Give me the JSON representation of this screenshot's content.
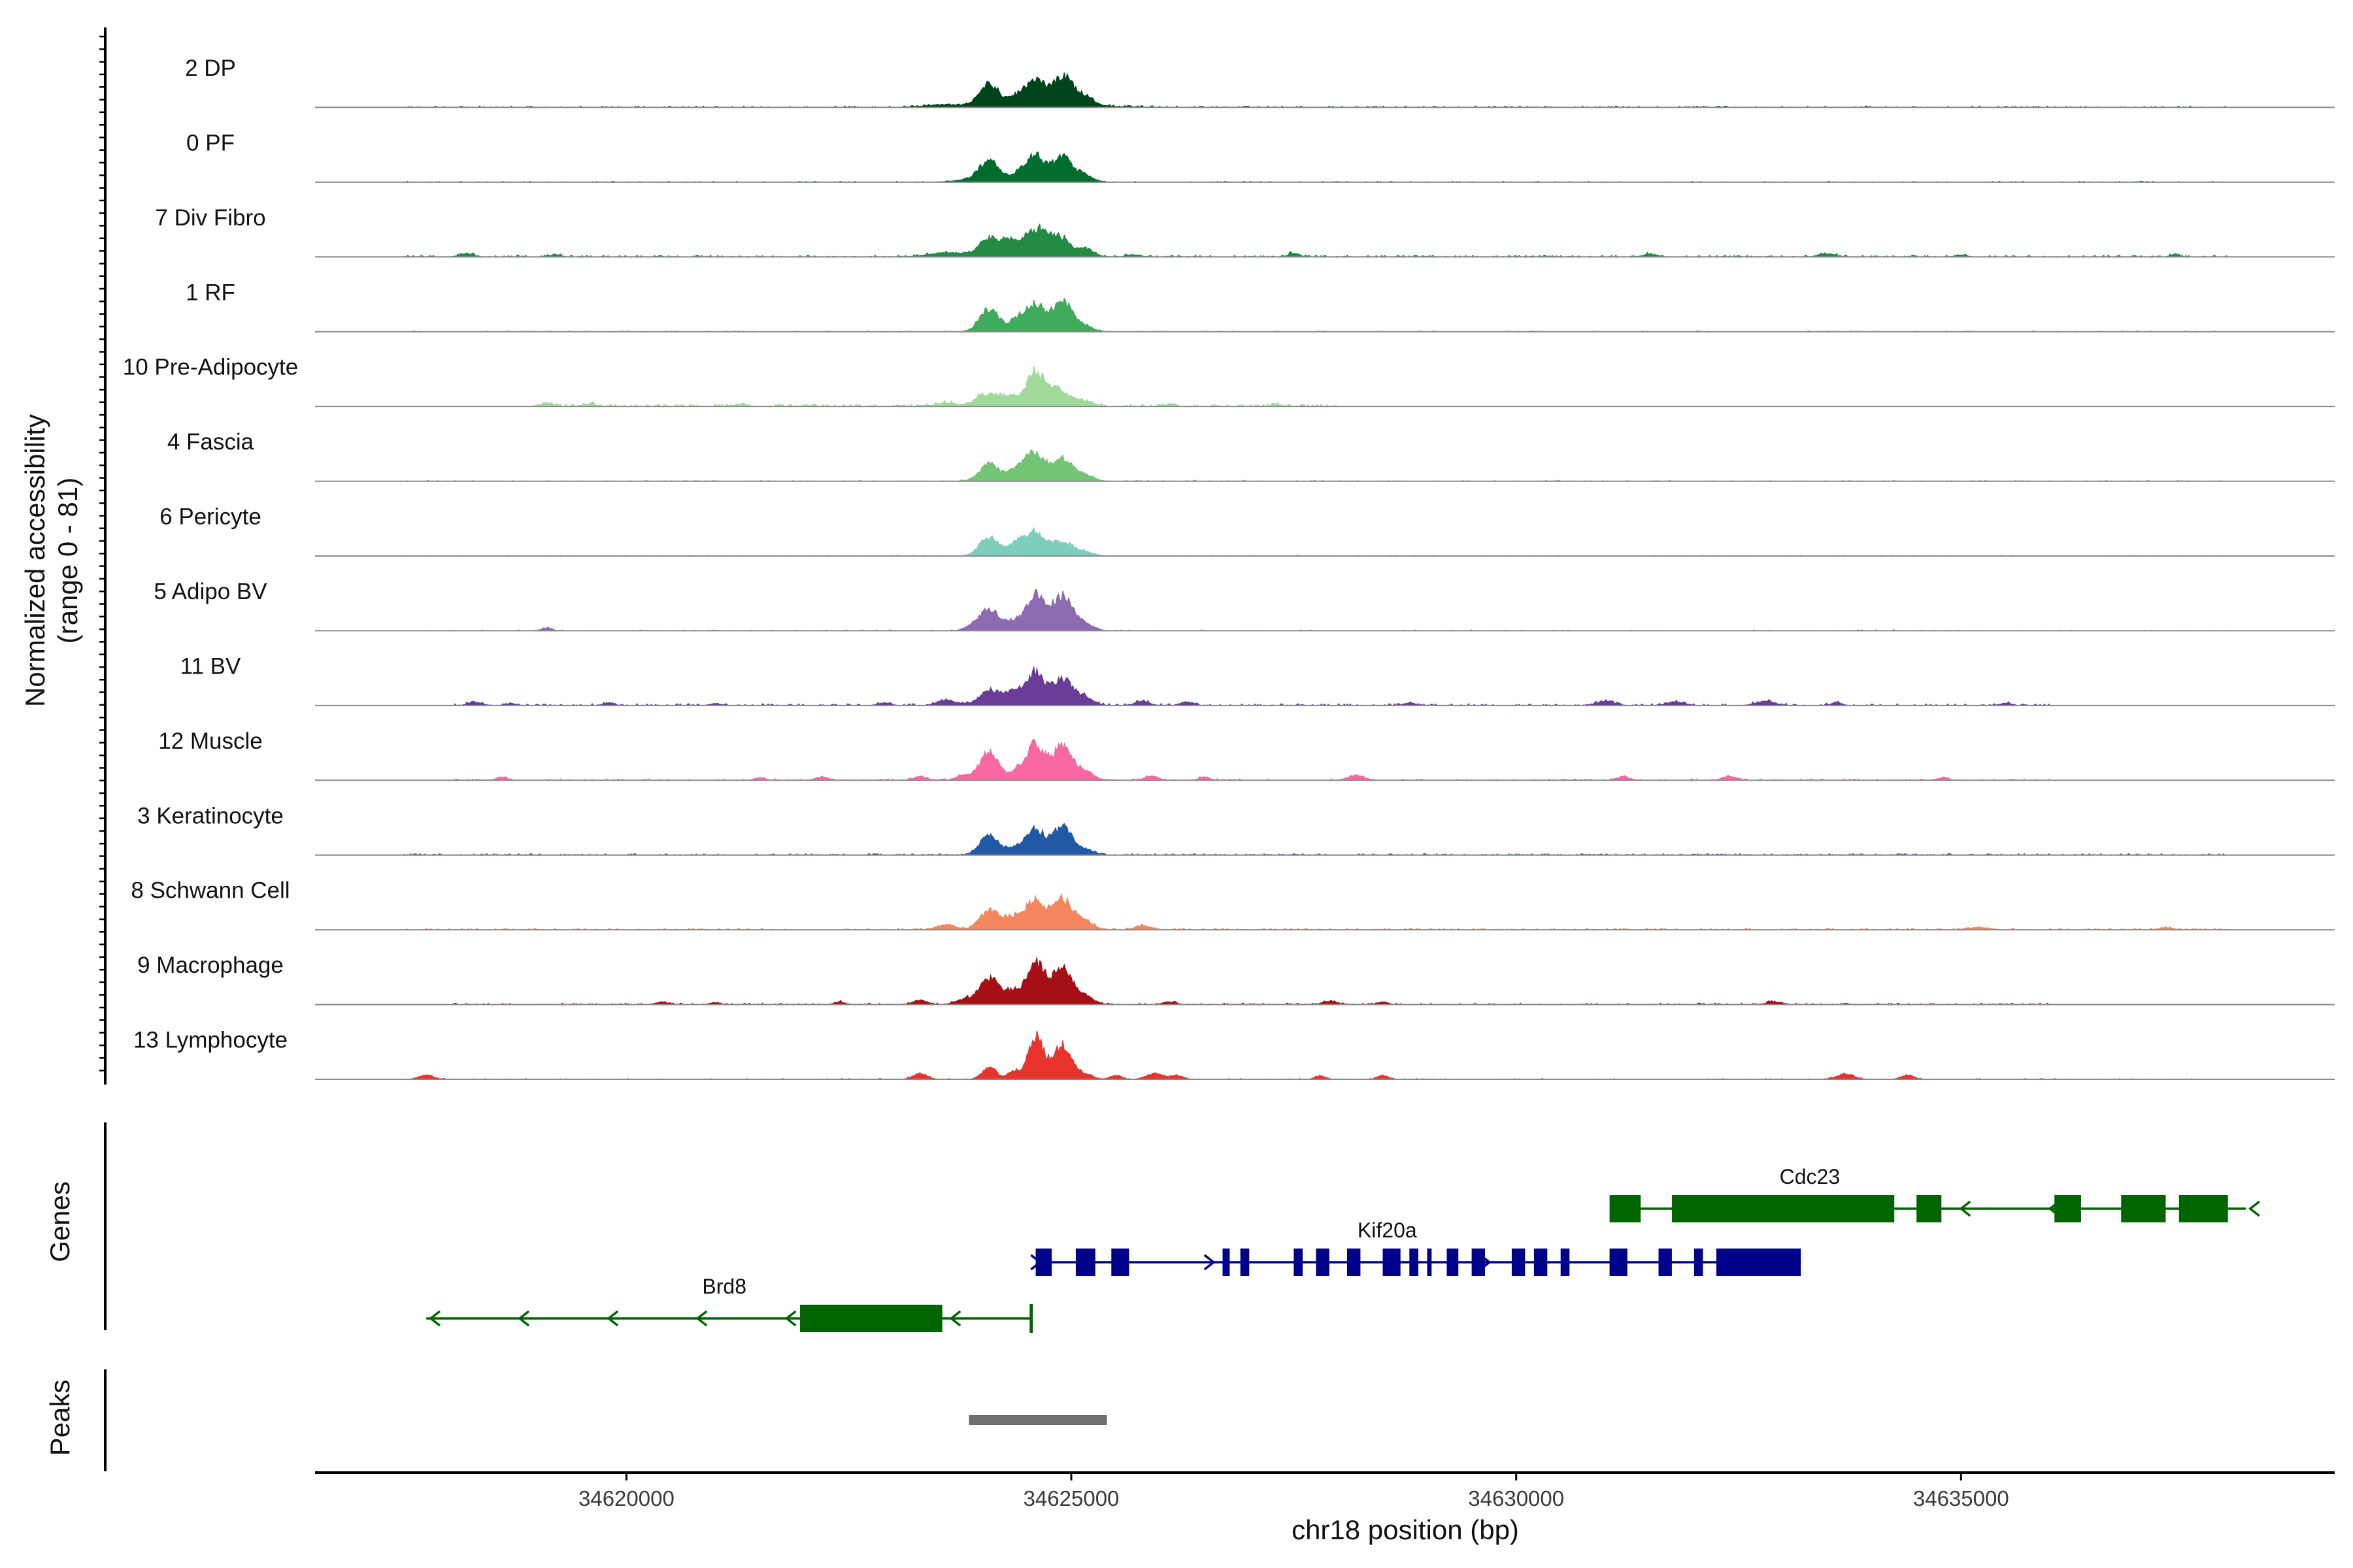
{
  "chart_data": {
    "type": "area",
    "title": "",
    "ylabel": [
      "Normalized accessibility",
      "(range 0 - 81)"
    ],
    "ylim": [
      0,
      81
    ],
    "xlabel": "chr18 position (bp)",
    "xlim": [
      34616500,
      34639200
    ],
    "xticks": [
      34620000,
      34625000,
      34630000,
      34635000
    ],
    "xtick_labels": [
      "34620000",
      "34625000",
      "34630000",
      "34635000"
    ],
    "tracks": [
      {
        "name": "2 DP",
        "color": "#00441b",
        "peaks": [
          [
            34624080,
            52,
            110
          ],
          [
            34624400,
            22,
            90
          ],
          [
            34624600,
            58,
            105
          ],
          [
            34624900,
            70,
            110
          ],
          [
            34625150,
            22,
            100
          ],
          [
            34623600,
            6,
            250
          ],
          [
            34624900,
            4,
            600
          ]
        ],
        "noise": {
          "amp": 3,
          "density": 0.35,
          "range": [
            34617500,
            34638000
          ]
        }
      },
      {
        "name": "0 PF",
        "color": "#006d2c",
        "peaks": [
          [
            34624080,
            48,
            110
          ],
          [
            34624400,
            18,
            90
          ],
          [
            34624600,
            62,
            105
          ],
          [
            34624900,
            60,
            110
          ],
          [
            34625150,
            15,
            100
          ],
          [
            34623900,
            6,
            200
          ]
        ],
        "noise": {
          "amp": 2,
          "density": 0.2,
          "range": [
            34617500,
            34638000
          ]
        }
      },
      {
        "name": "7 Div Fibro",
        "color": "#238b45",
        "peaks": [
          [
            34624080,
            42,
            120
          ],
          [
            34624350,
            35,
            120
          ],
          [
            34624600,
            58,
            110
          ],
          [
            34624850,
            48,
            120
          ],
          [
            34625150,
            18,
            100
          ],
          [
            34623600,
            10,
            200
          ],
          [
            34618200,
            8,
            80
          ],
          [
            34619200,
            6,
            60
          ],
          [
            34625700,
            6,
            70
          ],
          [
            34627500,
            9,
            60
          ],
          [
            34631500,
            6,
            80
          ],
          [
            34633500,
            8,
            90
          ],
          [
            34635000,
            5,
            60
          ],
          [
            34637400,
            6,
            50
          ]
        ],
        "noise": {
          "amp": 4,
          "density": 0.35,
          "range": [
            34617500,
            34638000
          ]
        }
      },
      {
        "name": "1 RF",
        "color": "#41ab5d",
        "peaks": [
          [
            34624080,
            52,
            110
          ],
          [
            34624400,
            28,
            90
          ],
          [
            34624600,
            62,
            105
          ],
          [
            34624900,
            70,
            110
          ],
          [
            34625150,
            12,
            100
          ]
        ],
        "noise": {
          "amp": 2,
          "density": 0.2,
          "range": [
            34617500,
            34638000
          ]
        }
      },
      {
        "name": "10 Pre-Adipocyte",
        "color": "#a1d99b",
        "peaks": [
          [
            34624050,
            28,
            120
          ],
          [
            34624300,
            22,
            110
          ],
          [
            34624600,
            78,
            100
          ],
          [
            34624850,
            38,
            120
          ],
          [
            34625150,
            12,
            100
          ],
          [
            34623600,
            8,
            120
          ],
          [
            34619100,
            7,
            80
          ],
          [
            34619600,
            6,
            60
          ],
          [
            34621300,
            6,
            60
          ],
          [
            34626100,
            5,
            60
          ],
          [
            34627300,
            4,
            60
          ]
        ],
        "noise": {
          "amp": 5,
          "density": 0.55,
          "range": [
            34619000,
            34628000
          ]
        }
      },
      {
        "name": "4 Fascia",
        "color": "#74c476",
        "peaks": [
          [
            34624080,
            40,
            110
          ],
          [
            34624400,
            30,
            100
          ],
          [
            34624600,
            62,
            105
          ],
          [
            34624900,
            52,
            110
          ],
          [
            34625150,
            14,
            100
          ]
        ],
        "noise": {
          "amp": 2,
          "density": 0.2,
          "range": [
            34617500,
            34638000
          ]
        }
      },
      {
        "name": "6 Pericyte",
        "color": "#7fcdbb",
        "peaks": [
          [
            34624080,
            45,
            110
          ],
          [
            34624400,
            30,
            90
          ],
          [
            34624600,
            55,
            105
          ],
          [
            34624900,
            35,
            110
          ],
          [
            34625150,
            10,
            100
          ]
        ],
        "noise": {
          "amp": 2,
          "density": 0.2,
          "range": [
            34617500,
            34638000
          ]
        }
      },
      {
        "name": "5 Adipo BV",
        "color": "#8c6bb1",
        "peaks": [
          [
            34624080,
            48,
            110
          ],
          [
            34624350,
            22,
            90
          ],
          [
            34624600,
            90,
            100
          ],
          [
            34624900,
            82,
            110
          ],
          [
            34625150,
            15,
            100
          ],
          [
            34619100,
            6,
            60
          ],
          [
            34623900,
            8,
            100
          ]
        ],
        "noise": {
          "amp": 2,
          "density": 0.15,
          "range": [
            34617500,
            34638000
          ]
        }
      },
      {
        "name": "11 BV",
        "color": "#6a3d9a",
        "peaks": [
          [
            34624080,
            38,
            110
          ],
          [
            34624350,
            30,
            100
          ],
          [
            34624600,
            78,
            100
          ],
          [
            34624900,
            62,
            110
          ],
          [
            34625150,
            18,
            100
          ],
          [
            34618300,
            7,
            80
          ],
          [
            34618700,
            5,
            60
          ],
          [
            34619800,
            6,
            60
          ],
          [
            34621000,
            5,
            60
          ],
          [
            34622900,
            6,
            70
          ],
          [
            34623600,
            14,
            100
          ],
          [
            34625800,
            10,
            80
          ],
          [
            34626300,
            8,
            70
          ],
          [
            34628800,
            7,
            60
          ],
          [
            34631000,
            9,
            110
          ],
          [
            34631800,
            8,
            100
          ],
          [
            34632800,
            10,
            110
          ],
          [
            34633600,
            7,
            60
          ],
          [
            34635500,
            6,
            60
          ]
        ],
        "noise": {
          "amp": 4,
          "density": 0.35,
          "range": [
            34618000,
            34636000
          ]
        }
      },
      {
        "name": "12 Muscle",
        "color": "#f768a1",
        "peaks": [
          [
            34624080,
            68,
            100
          ],
          [
            34624400,
            20,
            90
          ],
          [
            34624600,
            80,
            105
          ],
          [
            34624900,
            80,
            110
          ],
          [
            34625150,
            20,
            100
          ],
          [
            34618600,
            8,
            60
          ],
          [
            34621500,
            6,
            60
          ],
          [
            34622200,
            8,
            70
          ],
          [
            34623300,
            8,
            80
          ],
          [
            34623800,
            12,
            90
          ],
          [
            34625900,
            10,
            70
          ],
          [
            34626500,
            8,
            60
          ],
          [
            34628200,
            12,
            90
          ],
          [
            34631200,
            8,
            70
          ],
          [
            34632400,
            10,
            80
          ],
          [
            34634800,
            7,
            60
          ]
        ],
        "noise": {
          "amp": 3,
          "density": 0.3,
          "range": [
            34618000,
            34636000
          ]
        }
      },
      {
        "name": "3 Keratinocyte",
        "color": "#2159a7",
        "peaks": [
          [
            34624080,
            45,
            110
          ],
          [
            34624400,
            15,
            90
          ],
          [
            34624600,
            55,
            105
          ],
          [
            34624900,
            65,
            110
          ],
          [
            34625150,
            12,
            100
          ]
        ],
        "noise": {
          "amp": 3,
          "density": 0.4,
          "range": [
            34617500,
            34638000
          ]
        }
      },
      {
        "name": "8 Schwann Cell",
        "color": "#f4875d",
        "peaks": [
          [
            34624080,
            45,
            110
          ],
          [
            34624350,
            28,
            100
          ],
          [
            34624600,
            68,
            105
          ],
          [
            34624900,
            70,
            110
          ],
          [
            34625150,
            20,
            100
          ],
          [
            34623600,
            12,
            100
          ],
          [
            34625800,
            10,
            80
          ],
          [
            34635200,
            6,
            120
          ],
          [
            34637300,
            5,
            80
          ]
        ],
        "noise": {
          "amp": 3,
          "density": 0.35,
          "range": [
            34617500,
            34638000
          ]
        }
      },
      {
        "name": "9 Macrophage",
        "color": "#a50f15",
        "peaks": [
          [
            34624080,
            62,
            110
          ],
          [
            34624350,
            30,
            90
          ],
          [
            34624600,
            98,
            100
          ],
          [
            34624900,
            82,
            110
          ],
          [
            34625150,
            18,
            100
          ],
          [
            34620400,
            6,
            70
          ],
          [
            34621000,
            5,
            60
          ],
          [
            34622400,
            6,
            60
          ],
          [
            34623300,
            10,
            80
          ],
          [
            34623800,
            12,
            100
          ],
          [
            34626100,
            7,
            70
          ],
          [
            34627900,
            8,
            80
          ],
          [
            34628500,
            6,
            60
          ],
          [
            34632900,
            6,
            90
          ]
        ],
        "noise": {
          "amp": 3,
          "density": 0.3,
          "range": [
            34618000,
            34636000
          ]
        }
      },
      {
        "name": "13 Lymphocyte",
        "color": "#e8342c",
        "peaks": [
          [
            34624080,
            30,
            80
          ],
          [
            34624350,
            20,
            60
          ],
          [
            34624600,
            100,
            90
          ],
          [
            34624900,
            80,
            100
          ],
          [
            34625150,
            12,
            90
          ],
          [
            34617750,
            10,
            80
          ],
          [
            34623300,
            14,
            80
          ],
          [
            34625500,
            10,
            60
          ],
          [
            34625950,
            14,
            100
          ],
          [
            34626200,
            9,
            60
          ],
          [
            34627800,
            8,
            60
          ],
          [
            34628500,
            9,
            60
          ],
          [
            34633700,
            12,
            100
          ],
          [
            34634400,
            10,
            70
          ]
        ],
        "noise": {
          "amp": 2,
          "density": 0.15,
          "range": [
            34617500,
            34638000
          ]
        }
      }
    ],
    "genes_label": "Genes",
    "genes": [
      {
        "name": "Cdc23",
        "strand": "-",
        "row": 0,
        "color": "#006400",
        "start": 34631050,
        "end": 34638200,
        "label_at": 34633300,
        "exons": [
          [
            34631050,
            34631400
          ],
          [
            34631750,
            34634250
          ],
          [
            34634500,
            34634780
          ],
          [
            34636050,
            34636350
          ],
          [
            34636800,
            34637300
          ],
          [
            34637450,
            34638000
          ]
        ],
        "arrows": [
          34635000,
          34636000,
          34638250
        ]
      },
      {
        "name": "Kif20a",
        "strand": "+",
        "row": 1,
        "color": "#00008b",
        "start": 34624600,
        "end": 34633200,
        "label_at": 34628550,
        "exons": [
          [
            34624600,
            34624780
          ],
          [
            34625050,
            34625270
          ],
          [
            34625450,
            34625650
          ],
          [
            34626700,
            34626780
          ],
          [
            34626900,
            34627000
          ],
          [
            34627500,
            34627600
          ],
          [
            34627750,
            34627900
          ],
          [
            34628100,
            34628250
          ],
          [
            34628500,
            34628700
          ],
          [
            34628800,
            34628900
          ],
          [
            34629000,
            34629050
          ],
          [
            34629220,
            34629350
          ],
          [
            34629500,
            34629650
          ],
          [
            34629950,
            34630100
          ],
          [
            34630200,
            34630350
          ],
          [
            34630500,
            34630600
          ],
          [
            34631050,
            34631250
          ],
          [
            34631600,
            34631750
          ],
          [
            34632000,
            34632100
          ],
          [
            34632250,
            34633200
          ]
        ],
        "arrows": [
          34624650,
          34626600,
          34628700,
          34629700
        ]
      },
      {
        "name": "Brd8",
        "strand": "-",
        "row": 2,
        "color": "#006400",
        "start": 34617750,
        "end": 34624550,
        "label_at": 34621100,
        "exons": [
          [
            34621950,
            34623550
          ]
        ],
        "arrows": [
          34617800,
          34618800,
          34619800,
          34620800,
          34621800,
          34623650
        ],
        "end_tick": 34624550
      }
    ],
    "peaks_label": "Peaks",
    "peak_regions": [
      [
        34623850,
        34625400
      ]
    ]
  }
}
